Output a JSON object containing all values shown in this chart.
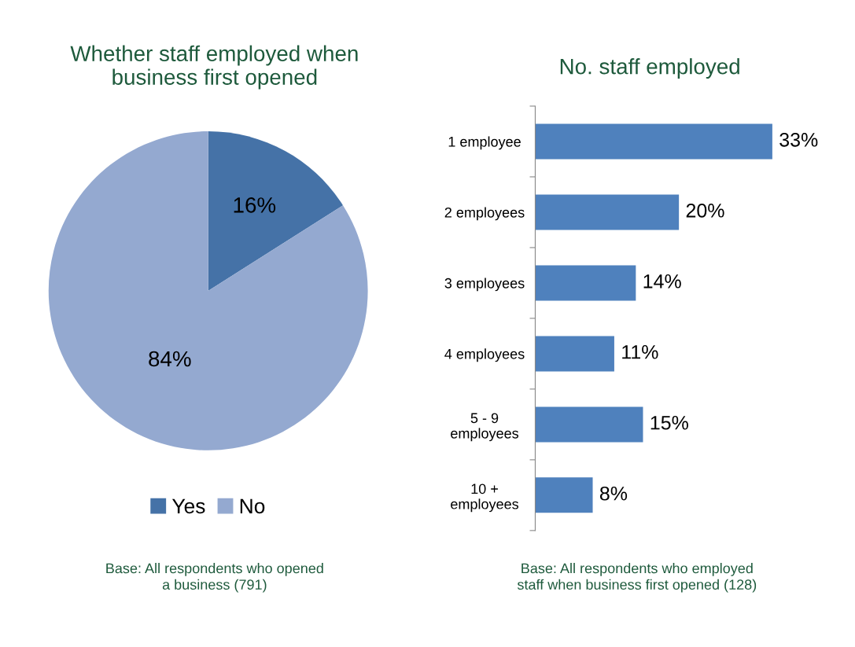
{
  "chart_data": [
    {
      "type": "pie",
      "title": "Whether staff employed when\nbusiness first opened",
      "categories": [
        "Yes",
        "No"
      ],
      "values": [
        16,
        84
      ],
      "colors": [
        "#4572a7",
        "#94a9d0"
      ],
      "value_labels": [
        "16%",
        "84%"
      ],
      "legend": "bottom",
      "annotations": [
        "Base: All respondents who opened\na business (791)"
      ]
    },
    {
      "type": "bar",
      "orientation": "horizontal",
      "title": "No. staff employed",
      "categories": [
        "1 employee",
        "2 employees",
        "3 employees",
        "4 employees",
        "5 - 9\nemployees",
        "10 +\nemployees"
      ],
      "values": [
        33,
        20,
        14,
        11,
        15,
        8
      ],
      "color": "#4f81bd",
      "value_labels": [
        "33%",
        "20%",
        "14%",
        "11%",
        "15%",
        "8%"
      ],
      "annotations": [
        "Base: All respondents who employed\nstaff when business first opened (128)"
      ]
    }
  ]
}
